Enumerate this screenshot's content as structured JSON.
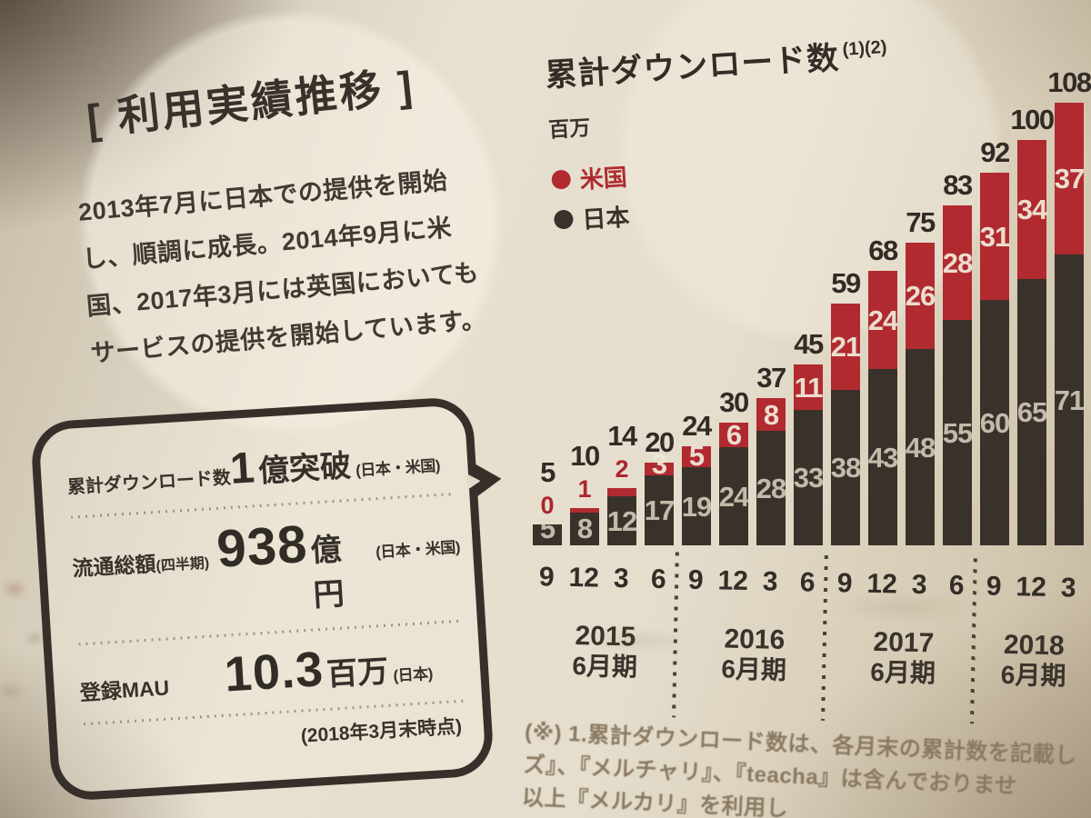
{
  "page": {
    "heading": "[ 利用実績推移 ]",
    "intro": "2013年7月に日本での提供を開始\nし、順調に成長。2014年9月に米\n国、2017年3月には英国においても\nサービスの提供を開始しています。"
  },
  "stats_bubble": {
    "rows": [
      {
        "label": "累計ダウンロード数",
        "label_suffix": "",
        "value": "1",
        "unit": "億突破",
        "scope": "(日本・米国)"
      },
      {
        "label": "流通総額",
        "label_suffix": "(四半期)",
        "value": "938",
        "unit": "億円",
        "scope": "(日本・米国)"
      },
      {
        "label": "登録MAU",
        "label_suffix": "",
        "value": "10.3",
        "unit": "百万",
        "scope": "(日本)"
      }
    ],
    "asof": "(2018年3月末時点)"
  },
  "chart": {
    "title": "累計ダウンロード数",
    "title_sup": "(1)(2)",
    "unit": "百万",
    "legend": [
      {
        "label": "米国",
        "color": "#b12a30"
      },
      {
        "label": "日本",
        "color": "#39322b"
      }
    ]
  },
  "chart_data": {
    "type": "bar",
    "stacked": true,
    "title": "累計ダウンロード数 (1)(2)",
    "ylabel": "百万",
    "ylim": [
      0,
      110
    ],
    "grid": false,
    "legend_position": "top-left",
    "categories": [
      "9",
      "12",
      "3",
      "6",
      "9",
      "12",
      "3",
      "6",
      "9",
      "12",
      "3",
      "6",
      "9",
      "12",
      "3"
    ],
    "groups": [
      {
        "year": "2015",
        "term": "6月期",
        "span": 4
      },
      {
        "year": "2016",
        "term": "6月期",
        "span": 4
      },
      {
        "year": "2017",
        "term": "6月期",
        "span": 4
      },
      {
        "year": "2018",
        "term": "6月期",
        "span": 3
      }
    ],
    "series": [
      {
        "name": "日本",
        "color": "#39322b",
        "values": [
          5,
          8,
          12,
          17,
          19,
          24,
          28,
          33,
          38,
          43,
          48,
          55,
          60,
          65,
          71
        ]
      },
      {
        "name": "米国",
        "color": "#b12a30",
        "values": [
          0,
          1,
          2,
          3,
          5,
          6,
          8,
          11,
          21,
          24,
          26,
          28,
          31,
          34,
          37
        ]
      }
    ],
    "totals": [
      5,
      10,
      14,
      20,
      24,
      30,
      37,
      45,
      59,
      68,
      75,
      83,
      92,
      100,
      108
    ]
  },
  "footnote": {
    "lines": [
      "(※) 1.累計ダウンロード数は、各月末の累計数を記載し",
      "ズ』、『メルチャリ』、『teacha』は含んでおりませ",
      "以上『メルカリ』を利用し"
    ]
  },
  "colors": {
    "paper": "#e0d9c8",
    "ink": "#35302a",
    "accent_red": "#b12a30"
  }
}
